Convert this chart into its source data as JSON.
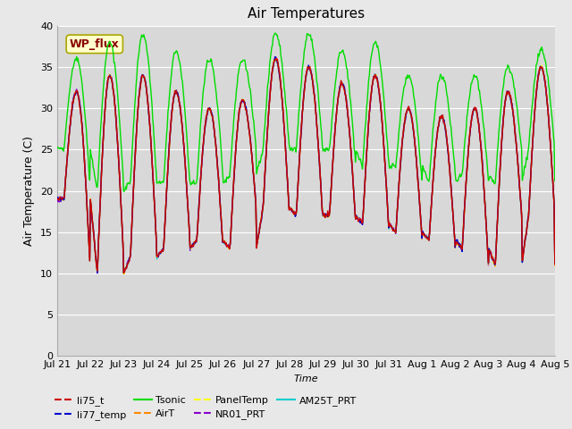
{
  "title": "Air Temperatures",
  "xlabel": "Time",
  "ylabel": "Air Temperature (C)",
  "ylim": [
    0,
    40
  ],
  "yticks": [
    0,
    5,
    10,
    15,
    20,
    25,
    30,
    35,
    40
  ],
  "legend_entries": [
    "li75_t",
    "li77_temp",
    "Tsonic",
    "AirT",
    "PanelTemp",
    "NR01_PRT",
    "AM25T_PRT"
  ],
  "line_colors": {
    "li75_t": "#cc0000",
    "li77_temp": "#0000cc",
    "Tsonic": "#00dd00",
    "AirT": "#ff8800",
    "PanelTemp": "#ffff00",
    "NR01_PRT": "#8800cc",
    "AM25T_PRT": "#00cccc"
  },
  "background_color": "#e8e8e8",
  "plot_bg_color": "#d8d8d8",
  "wp_flux_box_color": "#ffffcc",
  "wp_flux_text_color": "#880000",
  "xtick_labels": [
    "Jul 21",
    "Jul 22",
    "Jul 23",
    "Jul 24",
    "Jul 25",
    "Jul 26",
    "Jul 27",
    "Jul 28",
    "Jul 29",
    "Jul 30",
    "Jul 31",
    "Aug 1",
    "Aug 2",
    "Aug 3",
    "Aug 4",
    "Aug 5"
  ],
  "n_days": 15,
  "tsonic_extra_day": 5.5,
  "tsonic_extra_night": 2.0
}
